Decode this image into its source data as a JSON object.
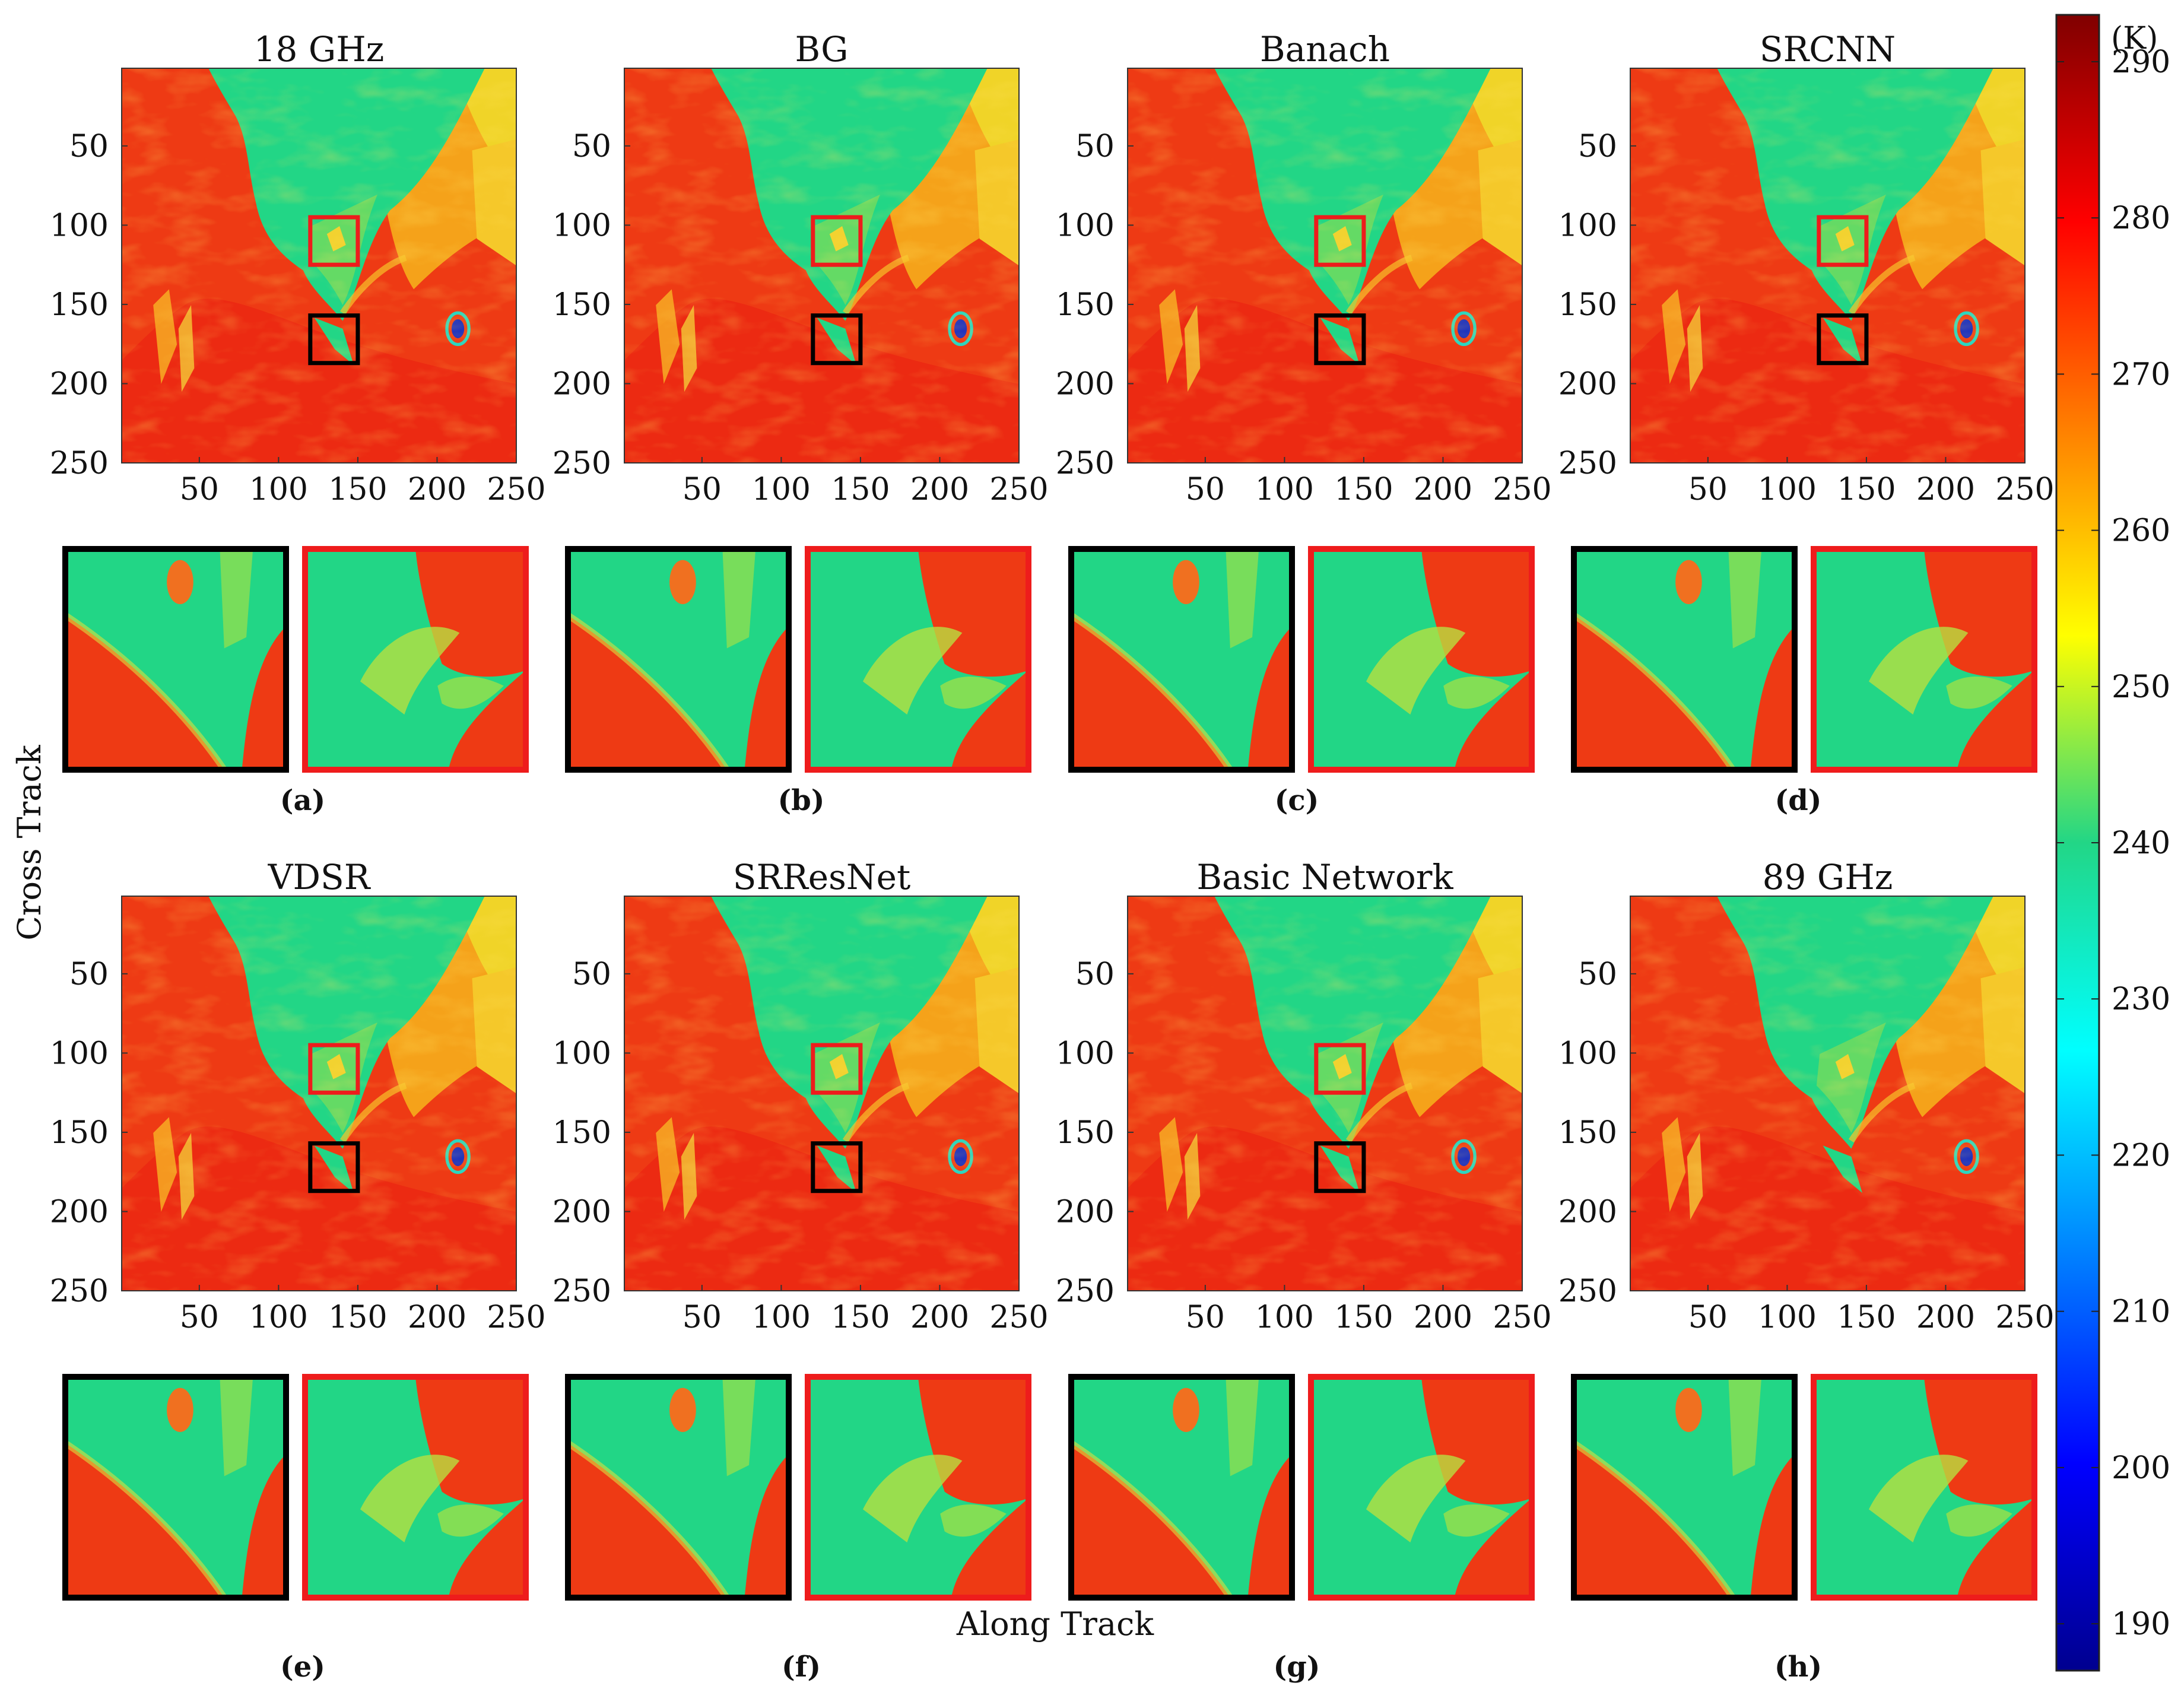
{
  "figure": {
    "ylabel": "Cross Track",
    "xlabel": "Along Track"
  },
  "colorbar": {
    "unit": "(K)",
    "ticks": [
      290,
      280,
      270,
      260,
      250,
      240,
      230,
      220,
      210,
      200,
      190
    ],
    "range": [
      187,
      293
    ],
    "colormap": "jet"
  },
  "chart_data": [
    {
      "type": "heatmap",
      "title": "18 GHz",
      "xticks": [
        50,
        100,
        150,
        200,
        250
      ],
      "yticks": [
        50,
        100,
        150,
        200,
        250
      ],
      "xlim": [
        1,
        250
      ],
      "ylim": [
        250,
        1
      ]
    },
    {
      "type": "heatmap",
      "title": "BG",
      "xticks": [
        50,
        100,
        150,
        200,
        250
      ],
      "yticks": [
        50,
        100,
        150,
        200,
        250
      ],
      "xlim": [
        1,
        250
      ],
      "ylim": [
        250,
        1
      ]
    },
    {
      "type": "heatmap",
      "title": "Banach",
      "xticks": [
        50,
        100,
        150,
        200,
        250
      ],
      "yticks": [
        50,
        100,
        150,
        200,
        250
      ],
      "xlim": [
        1,
        250
      ],
      "ylim": [
        250,
        1
      ]
    },
    {
      "type": "heatmap",
      "title": "SRCNN",
      "xticks": [
        50,
        100,
        150,
        200,
        250
      ],
      "yticks": [
        50,
        100,
        150,
        200,
        250
      ],
      "xlim": [
        1,
        250
      ],
      "ylim": [
        250,
        1
      ]
    },
    {
      "type": "heatmap",
      "title": "VDSR",
      "xticks": [
        50,
        100,
        150,
        200,
        250
      ],
      "yticks": [
        50,
        100,
        150,
        200,
        250
      ],
      "xlim": [
        1,
        250
      ],
      "ylim": [
        250,
        1
      ]
    },
    {
      "type": "heatmap",
      "title": "SRResNet",
      "xticks": [
        50,
        100,
        150,
        200,
        250
      ],
      "yticks": [
        50,
        100,
        150,
        200,
        250
      ],
      "xlim": [
        1,
        250
      ],
      "ylim": [
        250,
        1
      ]
    },
    {
      "type": "heatmap",
      "title": "Basic Network",
      "xticks": [
        50,
        100,
        150,
        200,
        250
      ],
      "yticks": [
        50,
        100,
        150,
        200,
        250
      ],
      "xlim": [
        1,
        250
      ],
      "ylim": [
        250,
        1
      ]
    },
    {
      "type": "heatmap",
      "title": "89 GHz",
      "xticks": [
        50,
        100,
        150,
        200,
        250
      ],
      "yticks": [
        50,
        100,
        150,
        200,
        250
      ],
      "xlim": [
        1,
        250
      ],
      "ylim": [
        250,
        1
      ]
    }
  ],
  "panel_labels": [
    "(a)",
    "(b)",
    "(c)",
    "(d)",
    "(e)",
    "(f)",
    "(g)",
    "(h)"
  ],
  "zoom_boxes": {
    "red": {
      "x": [
        120,
        150
      ],
      "y": [
        95,
        125
      ],
      "color": "#ee1c1c"
    },
    "black": {
      "x": [
        120,
        150
      ],
      "y": [
        157,
        187
      ],
      "color": "#000000"
    }
  },
  "colors": {
    "sea": "#22d686",
    "land": "#ee3a14",
    "warm": "#f8a018",
    "cold_spot": "#0a22c8"
  }
}
